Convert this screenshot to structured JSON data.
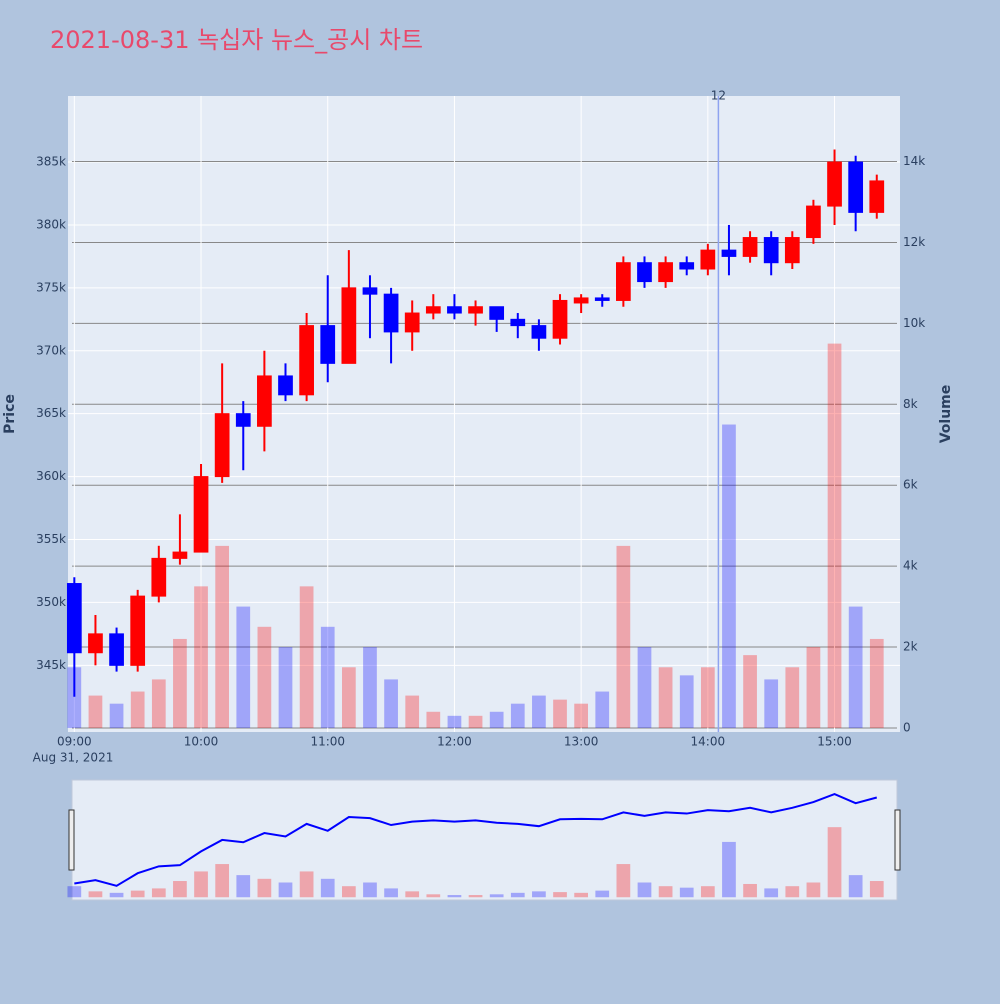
{
  "chart_data": {
    "type": "candlestick",
    "title": "2021-08-31 녹십자 뉴스_공시 차트",
    "x": [
      "09:00",
      "09:10",
      "09:20",
      "09:30",
      "09:40",
      "09:50",
      "10:00",
      "10:10",
      "10:20",
      "10:30",
      "10:40",
      "10:50",
      "11:00",
      "11:10",
      "11:20",
      "11:30",
      "11:40",
      "11:50",
      "12:00",
      "12:10",
      "12:20",
      "12:30",
      "12:40",
      "12:50",
      "13:00",
      "13:10",
      "13:20",
      "13:30",
      "13:40",
      "13:50",
      "14:00",
      "14:10",
      "14:20",
      "14:30",
      "14:40",
      "14:50",
      "15:00",
      "15:10",
      "15:20"
    ],
    "open": [
      351500,
      346000,
      347500,
      345000,
      350500,
      353500,
      354000,
      360000,
      365000,
      364000,
      368000,
      366500,
      372000,
      369000,
      375000,
      374500,
      371500,
      373000,
      373500,
      373000,
      373500,
      372500,
      372000,
      371000,
      373800,
      374200,
      374000,
      377000,
      375500,
      377000,
      376500,
      378000,
      377500,
      379000,
      377000,
      379000,
      381500,
      385000,
      381000
    ],
    "high": [
      352000,
      349000,
      348000,
      351000,
      354500,
      357000,
      361000,
      369000,
      366000,
      370000,
      369000,
      373000,
      376000,
      378000,
      376000,
      375000,
      374000,
      374500,
      374500,
      374000,
      373500,
      373000,
      372500,
      374500,
      374500,
      374500,
      377500,
      377500,
      377500,
      377500,
      378500,
      380000,
      379500,
      379500,
      379500,
      382000,
      386000,
      385500,
      384000
    ],
    "low": [
      342500,
      345000,
      344500,
      344500,
      350000,
      353000,
      354000,
      359500,
      360500,
      362000,
      366000,
      366000,
      367500,
      369000,
      371000,
      369000,
      370000,
      372500,
      372500,
      372000,
      371500,
      371000,
      370000,
      370500,
      373000,
      373500,
      373500,
      375000,
      375000,
      376000,
      376000,
      376000,
      377000,
      376000,
      376500,
      378500,
      380000,
      379500,
      380500
    ],
    "close": [
      346000,
      347500,
      345000,
      350500,
      353500,
      354000,
      360000,
      365000,
      364000,
      368000,
      366500,
      372000,
      369000,
      375000,
      374500,
      371500,
      373000,
      373500,
      373000,
      373500,
      372500,
      372000,
      371000,
      374000,
      374200,
      374000,
      377000,
      375500,
      377000,
      376500,
      378000,
      377500,
      379000,
      377000,
      379000,
      381500,
      385000,
      381000,
      383500
    ],
    "volume": [
      1500,
      800,
      600,
      900,
      1200,
      2200,
      3500,
      4500,
      3000,
      2500,
      2000,
      3500,
      2500,
      1500,
      2000,
      1200,
      800,
      400,
      300,
      300,
      400,
      600,
      800,
      700,
      600,
      900,
      4500,
      2000,
      1500,
      1300,
      1500,
      7500,
      1800,
      1200,
      1500,
      2000,
      9500,
      3000,
      2200
    ],
    "increasing_color": "#ff0000",
    "decreasing_color": "#0000ff",
    "volume_opacity": 0.3,
    "xlim": [
      "08:57",
      "15:31"
    ],
    "xticks": [
      "09:00",
      "10:00",
      "11:00",
      "12:00",
      "13:00",
      "14:00",
      "15:00"
    ],
    "x_date_label": "Aug 31, 2021",
    "ylim": [
      339700,
      390250
    ],
    "yticks": [
      {
        "value": 345000,
        "label": "345k"
      },
      {
        "value": 350000,
        "label": "350k"
      },
      {
        "value": 355000,
        "label": "355k"
      },
      {
        "value": 360000,
        "label": "360k"
      },
      {
        "value": 365000,
        "label": "365k"
      },
      {
        "value": 370000,
        "label": "370k"
      },
      {
        "value": 375000,
        "label": "375k"
      },
      {
        "value": 380000,
        "label": "380k"
      },
      {
        "value": 385000,
        "label": "385k"
      }
    ],
    "y2lim": [
      -100,
      15620
    ],
    "y2ticks": [
      0,
      {
        "value": 2000,
        "label": "2k"
      },
      {
        "value": 4000,
        "label": "4k"
      },
      {
        "value": 6000,
        "label": "6k"
      },
      {
        "value": 8000,
        "label": "8k"
      },
      {
        "value": 10000,
        "label": "10k"
      },
      {
        "value": 12000,
        "label": "12k"
      },
      {
        "value": 14000,
        "label": "14k"
      }
    ],
    "ylabel": "Price",
    "y2label": "Volume",
    "annotations": [
      {
        "x": "14:05",
        "text": "12"
      }
    ],
    "rangeslider": true
  }
}
